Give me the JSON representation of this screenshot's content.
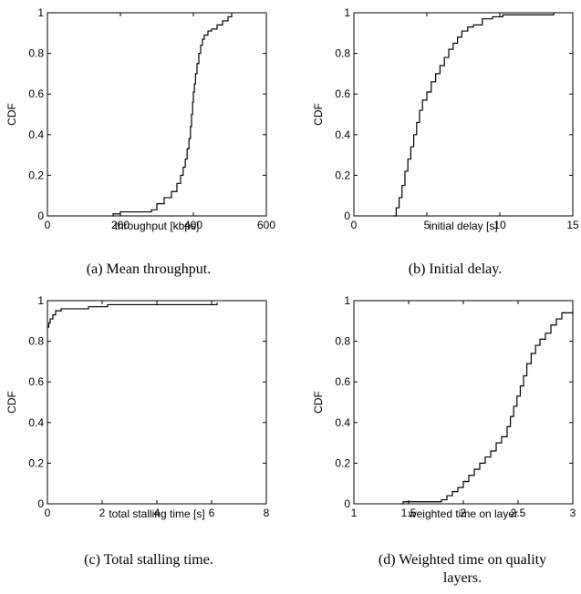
{
  "captions": [
    [
      "(a) Mean throughput."
    ],
    [
      "(b) Initial delay."
    ],
    [
      "(c) Total stalling time."
    ],
    [
      "(d) Weighted time on quality",
      "layers."
    ]
  ],
  "chart_data": [
    {
      "type": "line",
      "title": "",
      "xlabel": "throughput [kbps]",
      "ylabel": "CDF",
      "xlim": [
        0,
        600
      ],
      "ylim": [
        0,
        1
      ],
      "xticks": [
        "0",
        "200",
        "400",
        "600"
      ],
      "yticks": [
        "0",
        "0.2",
        "0.4",
        "0.6",
        "0.8",
        "1"
      ],
      "grid": false,
      "series": [
        {
          "step": true,
          "x": [
            178,
            180,
            200,
            285,
            300,
            320,
            340,
            355,
            365,
            372,
            378,
            383,
            388,
            392,
            395,
            398,
            400,
            403,
            406,
            410,
            415,
            420,
            425,
            430,
            440,
            450,
            465,
            480,
            495,
            505
          ],
          "y": [
            0,
            0.01,
            0.02,
            0.03,
            0.06,
            0.09,
            0.12,
            0.16,
            0.2,
            0.24,
            0.28,
            0.33,
            0.38,
            0.44,
            0.5,
            0.56,
            0.61,
            0.65,
            0.7,
            0.75,
            0.8,
            0.84,
            0.87,
            0.89,
            0.91,
            0.92,
            0.94,
            0.96,
            0.98,
            1
          ]
        }
      ]
    },
    {
      "type": "line",
      "title": "",
      "xlabel": "initial delay [s]",
      "ylabel": "CDF",
      "xlim": [
        0,
        15
      ],
      "ylim": [
        0,
        1
      ],
      "xticks": [
        "0",
        "5",
        "10",
        "15"
      ],
      "yticks": [
        "0",
        "0.2",
        "0.4",
        "0.6",
        "0.8",
        "1"
      ],
      "grid": false,
      "series": [
        {
          "step": true,
          "x": [
            2.7,
            2.9,
            3.1,
            3.3,
            3.5,
            3.7,
            3.9,
            4.1,
            4.3,
            4.5,
            4.7,
            5.0,
            5.3,
            5.6,
            5.9,
            6.2,
            6.5,
            6.8,
            7.1,
            7.4,
            7.8,
            8.2,
            8.8,
            9.5,
            10.2,
            13.7
          ],
          "y": [
            0,
            0.04,
            0.09,
            0.15,
            0.22,
            0.28,
            0.34,
            0.4,
            0.46,
            0.52,
            0.57,
            0.61,
            0.66,
            0.7,
            0.74,
            0.78,
            0.82,
            0.85,
            0.88,
            0.91,
            0.93,
            0.94,
            0.97,
            0.98,
            0.99,
            1
          ]
        }
      ]
    },
    {
      "type": "line",
      "title": "",
      "xlabel": "total stalling time [s]",
      "ylabel": "CDF",
      "xlim": [
        0,
        8
      ],
      "ylim": [
        0,
        1
      ],
      "xticks": [
        "0",
        "2",
        "4",
        "6",
        "8"
      ],
      "yticks": [
        "0",
        "0.2",
        "0.4",
        "0.6",
        "0.8",
        "1"
      ],
      "grid": false,
      "series": [
        {
          "step": true,
          "x": [
            0,
            0.05,
            0.1,
            0.2,
            0.3,
            0.5,
            1.0,
            1.5,
            2.2,
            3.5,
            6.2
          ],
          "y": [
            0.87,
            0.89,
            0.91,
            0.93,
            0.95,
            0.96,
            0.96,
            0.97,
            0.98,
            0.98,
            0.99
          ]
        }
      ]
    },
    {
      "type": "line",
      "title": "",
      "xlabel": "weighted time on layer",
      "ylabel": "CDF",
      "xlim": [
        1,
        3
      ],
      "ylim": [
        0,
        1
      ],
      "xticks": [
        "1",
        "1.5",
        "2",
        "2.5",
        "3"
      ],
      "yticks": [
        "0",
        "0.2",
        "0.4",
        "0.6",
        "0.8",
        "1"
      ],
      "grid": false,
      "series": [
        {
          "step": true,
          "x": [
            1.43,
            1.45,
            1.8,
            1.85,
            1.9,
            1.95,
            2.0,
            2.05,
            2.1,
            2.15,
            2.2,
            2.25,
            2.3,
            2.35,
            2.4,
            2.43,
            2.46,
            2.49,
            2.52,
            2.55,
            2.58,
            2.62,
            2.66,
            2.7,
            2.75,
            2.8,
            2.85,
            2.9,
            3.0
          ],
          "y": [
            0,
            0.01,
            0.02,
            0.04,
            0.06,
            0.08,
            0.11,
            0.14,
            0.17,
            0.2,
            0.23,
            0.26,
            0.3,
            0.33,
            0.38,
            0.43,
            0.48,
            0.53,
            0.58,
            0.63,
            0.69,
            0.74,
            0.78,
            0.81,
            0.84,
            0.88,
            0.91,
            0.94,
            0.95
          ]
        }
      ]
    }
  ]
}
